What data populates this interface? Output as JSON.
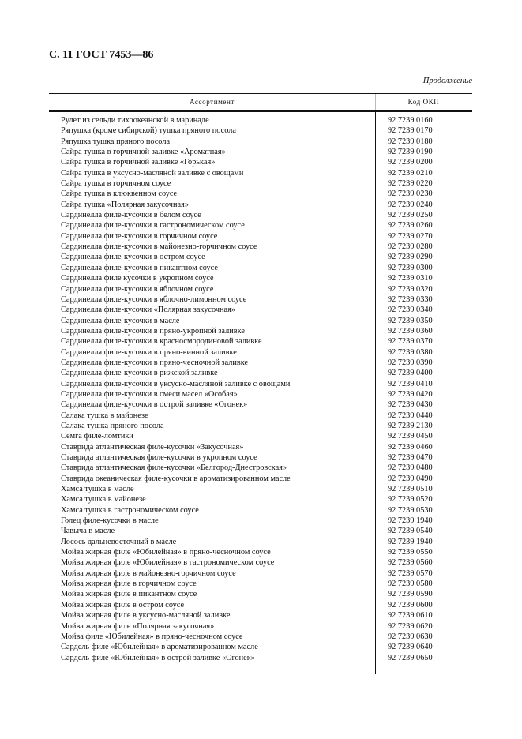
{
  "header": {
    "title": "С. 11 ГОСТ 7453—86",
    "continuation": "Продолжение"
  },
  "table": {
    "columns": [
      "Ассортимент",
      "Код ОКП"
    ],
    "rows": [
      [
        "Рулет из сельди тихоокеанской в маринаде",
        "92 7239 0160"
      ],
      [
        "Ряпушка (кроме сибирской) тушка пряного посола",
        "92 7239 0170"
      ],
      [
        "Ряпушка тушка пряного посола",
        "92 7239 0180"
      ],
      [
        "Сайра тушка в горчичной заливке «Ароматная»",
        "92 7239 0190"
      ],
      [
        "Сайра тушка в горчичной заливке «Горькая»",
        "92 7239 0200"
      ],
      [
        "Сайра тушка в уксусно-масляной заливке с овощами",
        "92 7239 0210"
      ],
      [
        "Сайра тушка в горчичном соусе",
        "92 7239 0220"
      ],
      [
        "Сайра тушка в клюквенном соусе",
        "92 7239 0230"
      ],
      [
        "Сайра тушка «Полярная закусочная»",
        "92 7239 0240"
      ],
      [
        "Сардинелла филе-кусочки в белом соусе",
        "92 7239 0250"
      ],
      [
        "Сардинелла филе-кусочки в гастрономическом соусе",
        "92 7239 0260"
      ],
      [
        "Сардинелла филе-кусочки в горчичном соусе",
        "92 7239 0270"
      ],
      [
        "Сардинелла филе-кусочки в майонезно-горчичном соусе",
        "92 7239 0280"
      ],
      [
        "Сардинелла филе-кусочки в остром соусе",
        "92 7239 0290"
      ],
      [
        "Сардинелла филе-кусочки в пикантном соусе",
        "92 7239 0300"
      ],
      [
        "Сардинелла филе кусочки в укропном соусе",
        "92 7239 0310"
      ],
      [
        "Сардинелла филе-кусочки в яблочном соусе",
        "92 7239 0320"
      ],
      [
        "Сардинелла филе-кусочки в яблочно-лимонном соусе",
        "92 7239 0330"
      ],
      [
        "Сардинелла филе-кусочки «Полярная закусочная»",
        "92 7239 0340"
      ],
      [
        "Сардинелла филе-кусочки в масле",
        "92 7239 0350"
      ],
      [
        "Сардинелла филе-кусочки в пряно-укропной заливке",
        "92 7239 0360"
      ],
      [
        "Сардинелла филе-кусочки в красносмородиновой заливке",
        "92 7239 0370"
      ],
      [
        "Сардинелла филе-кусочки в пряно-винной заливке",
        "92 7239 0380"
      ],
      [
        "Сардинелла филе-кусочки в пряно-чесночной заливке",
        "92 7239 0390"
      ],
      [
        "Сардинелла филе-кусочки в рижской заливке",
        "92 7239 0400"
      ],
      [
        "Сардинелла филе-кусочки в уксусно-масляной заливке с овощами",
        "92 7239 0410"
      ],
      [
        "Сардинелла филе-кусочки в смеси масел «Особая»",
        "92 7239 0420"
      ],
      [
        "Сардинелла филе-кусочки в острой заливке «Огонек»",
        "92 7239 0430"
      ],
      [
        "Салака тушка в майонезе",
        "92 7239 0440"
      ],
      [
        "Салака тушка пряного посола",
        "92 7239 2130"
      ],
      [
        "Семга филе-ломтики",
        "92 7239 0450"
      ],
      [
        "Ставрида атлантическая филе-кусочки «Закусочная»",
        "92 7239 0460"
      ],
      [
        "Ставрида атлантическая филе-кусочки в укропном соусе",
        "92 7239 0470"
      ],
      [
        "Ставрида атлантическая филе-кусочки «Белгород-Днестровская»",
        "92 7239 0480"
      ],
      [
        "Ставрида океаническая филе-кусочки в ароматизированном масле",
        "92 7239 0490"
      ],
      [
        "Хамса тушка в масле",
        "92 7239 0510"
      ],
      [
        "Хамса тушка в майонезе",
        "92 7239 0520"
      ],
      [
        "Хамса тушка в гастрономическом соусе",
        "92 7239 0530"
      ],
      [
        "Голец филе-кусочки в масле",
        "92 7239 1940"
      ],
      [
        "Чавыча в масле",
        "92 7239 0540"
      ],
      [
        "Лосось дальневосточный в масле",
        "92 7239 1940"
      ],
      [
        "Мойва жирная филе «Юбилейная» в пряно-чесночном соусе",
        "92 7239 0550"
      ],
      [
        "Мойва жирная филе «Юбилейная» в гастрономическом соусе",
        "92 7239 0560"
      ],
      [
        "Мойва жирная филе в майонезно-горчичном соусе",
        "92 7239 0570"
      ],
      [
        "Мойва жирная филе в горчичном соусе",
        "92 7239 0580"
      ],
      [
        "Мойва жирная филе в пикантном соусе",
        "92 7239 0590"
      ],
      [
        "Мойва жирная филе в остром соусе",
        "92 7239 0600"
      ],
      [
        "Мойва жирная филе в уксусно-масляной заливке",
        "92 7239 0610"
      ],
      [
        "Мойва жирная филе «Полярная закусочная»",
        "92 7239 0620"
      ],
      [
        "Мойва филе «Юбилейная» в пряно-чесночном соусе",
        "92 7239 0630"
      ],
      [
        "Сардель филе «Юбилейная» в ароматизированном масле",
        "92 7239 0640"
      ],
      [
        "Сардель филе «Юбилейная» в острой заливке «Огонек»",
        "92 7239 0650"
      ]
    ]
  }
}
